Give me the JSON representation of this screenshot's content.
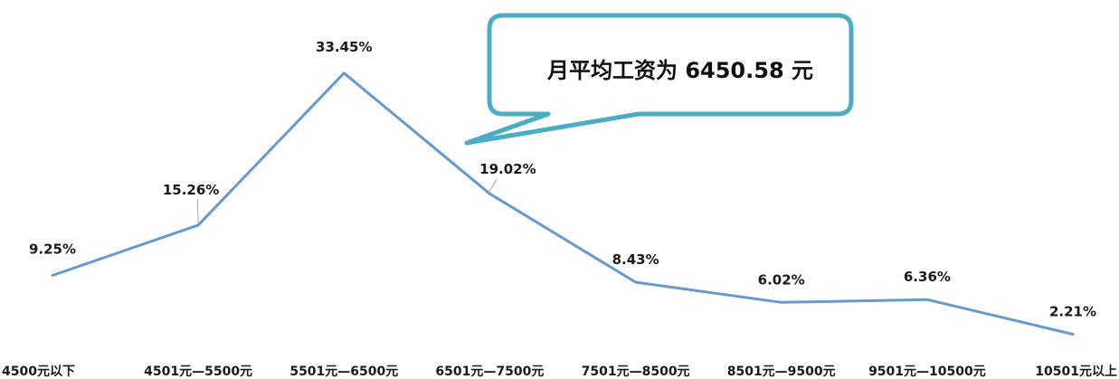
{
  "chart_data": {
    "type": "line",
    "categories": [
      "4500元以下",
      "4501元—5500元",
      "5501元—6500元",
      "6501元—7500元",
      "7501元—8500元",
      "8501元—9500元",
      "9501元—10500元",
      "10501元以上"
    ],
    "values": [
      9.25,
      15.26,
      33.45,
      19.02,
      8.43,
      6.02,
      6.36,
      2.21
    ],
    "data_labels": [
      "9.25%",
      "15.26%",
      "33.45%",
      "19.02%",
      "8.43%",
      "6.02%",
      "6.36%",
      "2.21%"
    ],
    "line_color": "#6699CC",
    "grid": false,
    "legend": "none",
    "annotation": "月平均工资为 6450.58 元",
    "callout_border_color": "#4BACC6"
  }
}
